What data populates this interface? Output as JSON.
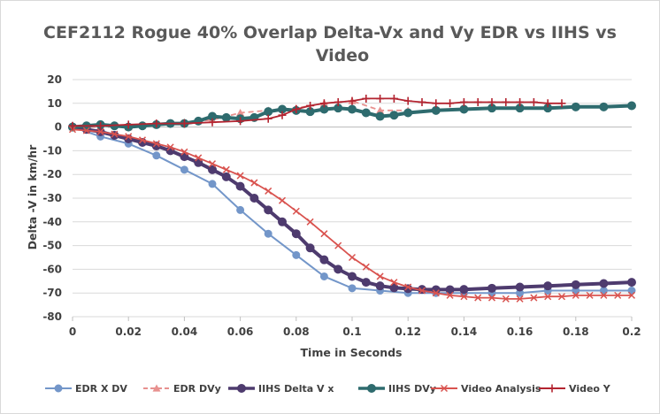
{
  "chart_data": {
    "type": "line",
    "title_line1": "CEF2112 Rogue 40% Overlap Delta-Vx and Vy EDR vs IIHS vs",
    "title_line2": "Video",
    "xlabel": "Time in Seconds",
    "ylabel": "Delta -V in km/hr",
    "xlim": [
      0,
      0.2
    ],
    "ylim": [
      -80,
      20
    ],
    "x_ticks": [
      0,
      0.02,
      0.04,
      0.06,
      0.08,
      0.1,
      0.12,
      0.14,
      0.16,
      0.18,
      0.2
    ],
    "x_tick_labels": [
      "0",
      "0.02",
      "0.04",
      "0.06",
      "0.08",
      "0.1",
      "0.12",
      "0.14",
      "0.16",
      "0.18",
      "0.2"
    ],
    "y_ticks": [
      20,
      10,
      0,
      -10,
      -20,
      -30,
      -40,
      -50,
      -60,
      -70,
      -80
    ],
    "y_tick_labels": [
      "20",
      "10",
      "0",
      "-10",
      "-20",
      "-30",
      "-40",
      "-50",
      "-60",
      "-70",
      "-80"
    ],
    "grid": "horizontal",
    "legend_position": "bottom",
    "series": [
      {
        "name": "EDR X DV",
        "color": "#7396c9",
        "line_style": "solid",
        "marker": "circle",
        "x": [
          0,
          0.01,
          0.02,
          0.03,
          0.04,
          0.05,
          0.06,
          0.07,
          0.08,
          0.09,
          0.1,
          0.11,
          0.12,
          0.13,
          0.14,
          0.15,
          0.16,
          0.17,
          0.18,
          0.19,
          0.2
        ],
        "values": [
          0,
          -4,
          -7,
          -12,
          -18,
          -24,
          -35,
          -45,
          -54,
          -63,
          -68,
          -69,
          -70,
          -70,
          -70,
          -70,
          -70,
          -69,
          -69,
          -69,
          -69
        ]
      },
      {
        "name": "EDR DVy",
        "color": "#e8918f",
        "line_style": "dashed",
        "marker": "triangle",
        "x": [
          0,
          0.01,
          0.02,
          0.03,
          0.04,
          0.05,
          0.06,
          0.07,
          0.08,
          0.09,
          0.1,
          0.11,
          0.12
        ],
        "values": [
          0,
          0,
          0,
          1,
          2,
          3,
          6,
          7,
          8,
          10,
          11,
          7,
          7
        ]
      },
      {
        "name": "IIHS Delta V x",
        "color": "#4e3b6e",
        "line_style": "solid",
        "marker": "circle-dense",
        "x": [
          0,
          0.005,
          0.01,
          0.015,
          0.02,
          0.025,
          0.03,
          0.035,
          0.04,
          0.045,
          0.05,
          0.055,
          0.06,
          0.065,
          0.07,
          0.075,
          0.08,
          0.085,
          0.09,
          0.095,
          0.1,
          0.105,
          0.11,
          0.115,
          0.12,
          0.125,
          0.13,
          0.135,
          0.14,
          0.15,
          0.16,
          0.17,
          0.18,
          0.19,
          0.2
        ],
        "values": [
          0,
          -1,
          -2,
          -3.5,
          -5,
          -6.5,
          -8,
          -10,
          -12.5,
          -15,
          -18,
          -21,
          -25,
          -30,
          -35,
          -40,
          -45,
          -51,
          -56,
          -60,
          -63,
          -65.5,
          -67,
          -67.8,
          -68.2,
          -68.5,
          -68.6,
          -68.6,
          -68.5,
          -68,
          -67.5,
          -67,
          -66.5,
          -66,
          -65.5
        ]
      },
      {
        "name": "IIHS DVy",
        "color": "#2e6b6e",
        "line_style": "solid",
        "marker": "circle-dense",
        "x": [
          0,
          0.005,
          0.01,
          0.015,
          0.02,
          0.025,
          0.03,
          0.035,
          0.04,
          0.045,
          0.05,
          0.055,
          0.06,
          0.065,
          0.07,
          0.075,
          0.08,
          0.085,
          0.09,
          0.095,
          0.1,
          0.105,
          0.11,
          0.115,
          0.12,
          0.13,
          0.14,
          0.15,
          0.16,
          0.17,
          0.18,
          0.19,
          0.2
        ],
        "values": [
          0,
          0.5,
          1,
          0.5,
          0,
          0.5,
          1,
          1.5,
          1.5,
          2.5,
          4.5,
          4,
          3.5,
          4,
          6.5,
          7.5,
          7,
          6.5,
          7.5,
          8,
          7.5,
          6,
          4.5,
          5,
          6,
          7,
          7.5,
          8,
          8,
          8,
          8.5,
          8.5,
          9
        ]
      },
      {
        "name": "Video Analysis",
        "color": "#d9534f",
        "line_style": "solid",
        "marker": "x",
        "x": [
          0,
          0.005,
          0.01,
          0.015,
          0.02,
          0.025,
          0.03,
          0.035,
          0.04,
          0.045,
          0.05,
          0.055,
          0.06,
          0.065,
          0.07,
          0.075,
          0.08,
          0.085,
          0.09,
          0.095,
          0.1,
          0.105,
          0.11,
          0.115,
          0.12,
          0.125,
          0.13,
          0.135,
          0.14,
          0.145,
          0.15,
          0.155,
          0.16,
          0.165,
          0.17,
          0.175,
          0.18,
          0.185,
          0.19,
          0.195,
          0.2
        ],
        "values": [
          -1,
          -1.5,
          -2,
          -3,
          -4,
          -5.5,
          -7,
          -8.5,
          -10.5,
          -13,
          -15.5,
          -18,
          -20.5,
          -23.5,
          -27,
          -31,
          -35.5,
          -40,
          -45,
          -50,
          -55,
          -59,
          -63,
          -65.5,
          -67.5,
          -69,
          -70,
          -71,
          -71.5,
          -72,
          -72,
          -72.5,
          -72.5,
          -72,
          -71.5,
          -71.5,
          -71,
          -71,
          -71,
          -71,
          -71
        ]
      },
      {
        "name": "Video  Y",
        "color": "#b32430",
        "line_style": "solid",
        "marker": "plus",
        "x": [
          0,
          0.01,
          0.02,
          0.03,
          0.04,
          0.05,
          0.06,
          0.07,
          0.075,
          0.08,
          0.085,
          0.09,
          0.095,
          0.1,
          0.105,
          0.11,
          0.115,
          0.12,
          0.125,
          0.13,
          0.135,
          0.14,
          0.145,
          0.15,
          0.155,
          0.16,
          0.165,
          0.17,
          0.175
        ],
        "values": [
          0.5,
          0.5,
          1,
          1.5,
          1.5,
          2,
          2.5,
          3.5,
          5,
          7.5,
          9,
          10,
          10.5,
          11,
          12,
          12,
          12,
          11,
          10.5,
          10,
          10,
          10.5,
          10.5,
          10.5,
          10.5,
          10.5,
          10.5,
          10,
          10
        ]
      }
    ]
  }
}
